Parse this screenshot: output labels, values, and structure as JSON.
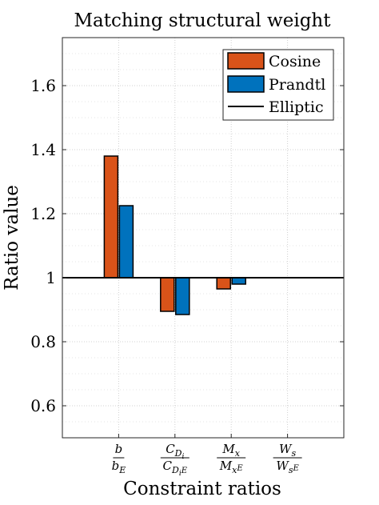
{
  "chart_data": {
    "type": "bar",
    "title": "Matching structural weight",
    "xlabel": "Constraint ratios",
    "ylabel": "Ratio value",
    "ylim": [
      0.5,
      1.75
    ],
    "yticks": [
      0.6,
      0.8,
      1,
      1.2,
      1.4,
      1.6
    ],
    "ytick_labels": [
      "0.6",
      "0.8",
      "1",
      "1.2",
      "1.4",
      "1.6"
    ],
    "baseline": 1,
    "grid": true,
    "legend_position": "top-right",
    "categories": [
      {
        "id": "b",
        "num": "b",
        "den": "b",
        "den_sub": "E"
      },
      {
        "id": "cdi",
        "num": "C",
        "num_sub": "D",
        "num_subsub": "i",
        "den": "C",
        "den_sub": "D",
        "den_subsub": "i",
        "den_sub2": "E"
      },
      {
        "id": "mx",
        "num": "M",
        "num_sub": "x",
        "den": "M",
        "den_sub": "x",
        "den_sub2": "E"
      },
      {
        "id": "ws",
        "num": "W",
        "num_sub": "s",
        "den": "W",
        "den_sub": "s",
        "den_sub2": "E"
      }
    ],
    "series": [
      {
        "name": "Cosine",
        "color": "#D95319",
        "values": [
          1.38,
          0.895,
          0.965,
          1.0
        ]
      },
      {
        "name": "Prandtl",
        "color": "#0072BD",
        "values": [
          1.225,
          0.885,
          0.98,
          1.0
        ]
      }
    ],
    "reference_line": {
      "name": "Elliptic",
      "value": 1,
      "color": "#000000"
    }
  }
}
